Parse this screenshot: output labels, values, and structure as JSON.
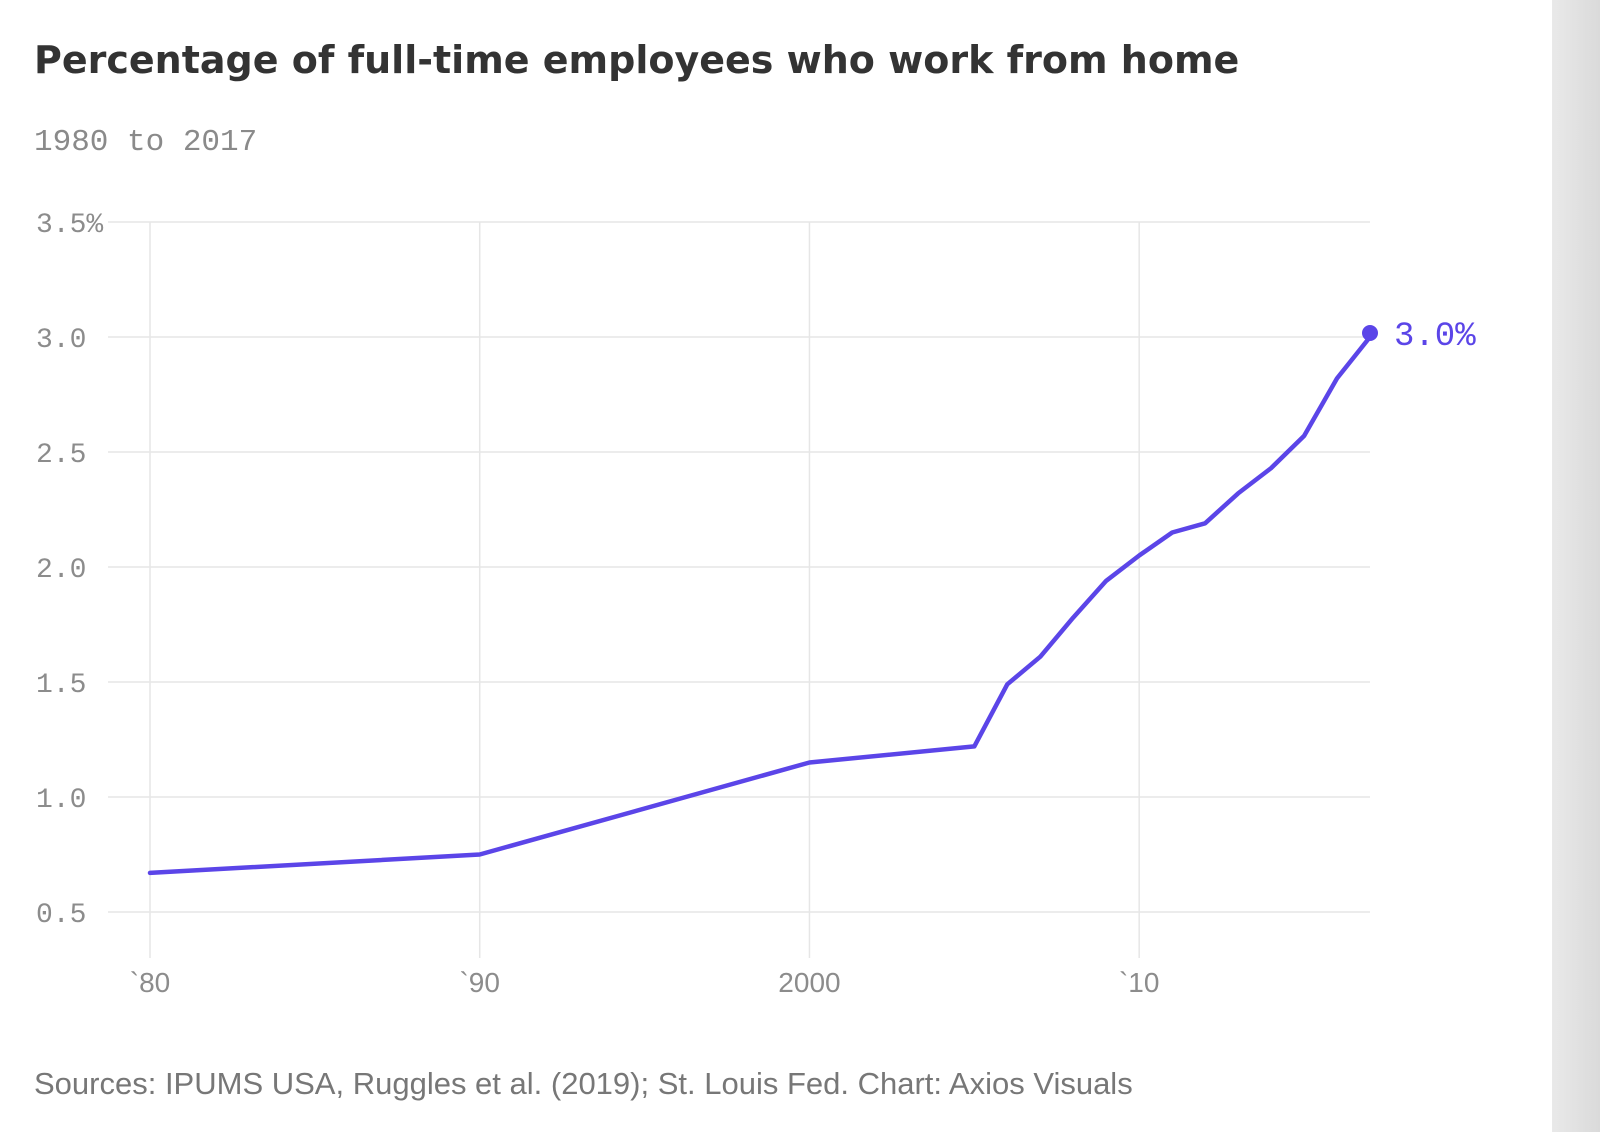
{
  "title": "Percentage of full-time employees who work from home",
  "subtitle": "1980 to 2017",
  "source": "Sources: IPUMS USA, Ruggles et al. (2019); St. Louis Fed. Chart: Axios Visuals",
  "colors": {
    "line": "#5b45e8",
    "grid": "#e6e6e6",
    "tick": "#8c8c8c",
    "title": "#333333"
  },
  "chart_data": {
    "type": "line",
    "title": "Percentage of full-time employees who work from home",
    "subtitle": "1980 to 2017",
    "xlabel": "",
    "ylabel": "",
    "xlim": [
      1980,
      2017
    ],
    "ylim": [
      0.5,
      3.5
    ],
    "x_ticks": [
      1980,
      1990,
      2000,
      2010
    ],
    "x_tick_labels": [
      "`80",
      "`90",
      "2000",
      "`10"
    ],
    "y_ticks": [
      0.5,
      1.0,
      1.5,
      2.0,
      2.5,
      3.0,
      3.5
    ],
    "y_tick_labels": [
      "0.5",
      "1.0",
      "1.5",
      "2.0",
      "2.5",
      "3.0",
      "3.5%"
    ],
    "grid": true,
    "series": [
      {
        "x": [
          1980,
          1990,
          2000,
          2005,
          2006,
          2007,
          2008,
          2009,
          2010,
          2011,
          2012,
          2013,
          2014,
          2015,
          2016,
          2017
        ],
        "values": [
          0.67,
          0.75,
          1.15,
          1.22,
          1.49,
          1.61,
          1.78,
          1.94,
          2.05,
          2.15,
          2.19,
          2.32,
          2.43,
          2.57,
          2.82,
          3.0
        ]
      }
    ],
    "end_label": "3.0%"
  }
}
